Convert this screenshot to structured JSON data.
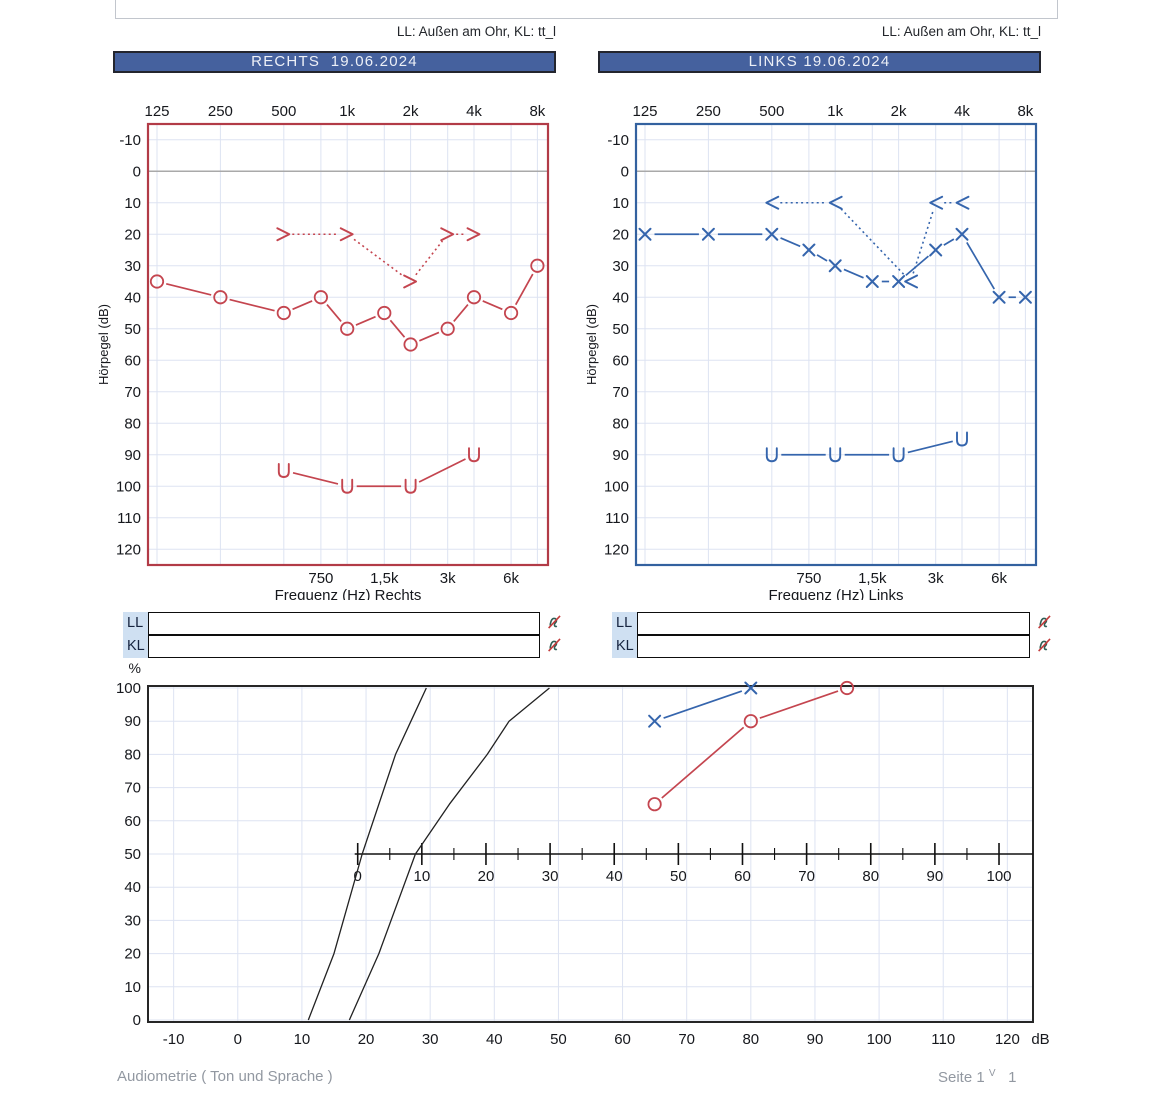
{
  "notes": {
    "left": "LL: Außen am Ohr, KL: tt_l",
    "right": "LL: Außen am Ohr, KL: tt_l"
  },
  "colors": {
    "red": "#c4454f",
    "red_border": "#b23b47",
    "blue": "#3565ad",
    "blue_border": "#33619f",
    "header_bg": "#45619e",
    "header_border": "#23252e",
    "header_text": "#edf0f7",
    "grid": "#dde3f2",
    "zero_line": "#a9a9a9",
    "axis_text": "#16181d",
    "label_bg": "#cfe0f2",
    "label_text": "#16243f",
    "speech_border": "#262626",
    "curve": "#222222",
    "footer_text": "#9298a1",
    "topbox_border": "#c2c6cd",
    "icon_glyph": "#2f5f55",
    "icon_slash": "#c23b3b"
  },
  "io_panel": {
    "rows": [
      "LL",
      "KL"
    ]
  },
  "footer": {
    "left": "Audiometrie ( Ton und Sprache )",
    "page": "Seite 1",
    "sup": "V",
    "num": "1"
  },
  "chart_data": [
    {
      "type": "line",
      "id": "audiogram-rechts",
      "title": "RECHTS  19.06.2024",
      "xlabel": "Frequenz (Hz) Rechts",
      "ylabel": "Hörpegel (dB)",
      "color_key": "red",
      "ylim": [
        -10,
        120
      ],
      "y_step": 10,
      "y_inverted": true,
      "top_ticks": [
        {
          "f": 125,
          "label": "125"
        },
        {
          "f": 250,
          "label": "250"
        },
        {
          "f": 500,
          "label": "500"
        },
        {
          "f": 1000,
          "label": "1k"
        },
        {
          "f": 2000,
          "label": "2k"
        },
        {
          "f": 4000,
          "label": "4k"
        },
        {
          "f": 8000,
          "label": "8k"
        }
      ],
      "bottom_ticks": [
        {
          "f": 750,
          "label": "750"
        },
        {
          "f": 1500,
          "label": "1,5k"
        },
        {
          "f": 3000,
          "label": "3k"
        },
        {
          "f": 6000,
          "label": "6k"
        }
      ],
      "grid_freqs": [
        125,
        250,
        500,
        750,
        1000,
        1500,
        2000,
        3000,
        4000,
        6000,
        8000
      ],
      "series": [
        {
          "name": "luftleitung",
          "symbol": "O",
          "line": "solid",
          "points": [
            [
              125,
              35
            ],
            [
              250,
              40
            ],
            [
              500,
              45
            ],
            [
              750,
              40
            ],
            [
              1000,
              50
            ],
            [
              1500,
              45
            ],
            [
              2000,
              55
            ],
            [
              3000,
              50
            ],
            [
              4000,
              40
            ],
            [
              6000,
              45
            ],
            [
              8000,
              30
            ]
          ]
        },
        {
          "name": "knochenleitung",
          "symbol": ">",
          "line": "dotted",
          "points": [
            [
              500,
              20
            ],
            [
              1000,
              20
            ],
            [
              2000,
              35
            ],
            [
              3000,
              20
            ],
            [
              4000,
              20
            ]
          ]
        },
        {
          "name": "unbehaglichkeit",
          "symbol": "U",
          "line": "solid",
          "points": [
            [
              500,
              95
            ],
            [
              1000,
              100
            ],
            [
              2000,
              100
            ],
            [
              4000,
              90
            ]
          ]
        }
      ]
    },
    {
      "type": "line",
      "id": "audiogram-links",
      "title": "LINKS 19.06.2024",
      "xlabel": "Frequenz (Hz) Links",
      "ylabel": "Hörpegel (dB)",
      "color_key": "blue",
      "ylim": [
        -10,
        120
      ],
      "y_step": 10,
      "y_inverted": true,
      "top_ticks": [
        {
          "f": 125,
          "label": "125"
        },
        {
          "f": 250,
          "label": "250"
        },
        {
          "f": 500,
          "label": "500"
        },
        {
          "f": 1000,
          "label": "1k"
        },
        {
          "f": 2000,
          "label": "2k"
        },
        {
          "f": 4000,
          "label": "4k"
        },
        {
          "f": 8000,
          "label": "8k"
        }
      ],
      "bottom_ticks": [
        {
          "f": 750,
          "label": "750"
        },
        {
          "f": 1500,
          "label": "1,5k"
        },
        {
          "f": 3000,
          "label": "3k"
        },
        {
          "f": 6000,
          "label": "6k"
        }
      ],
      "grid_freqs": [
        125,
        250,
        500,
        750,
        1000,
        1500,
        2000,
        3000,
        4000,
        6000,
        8000
      ],
      "series": [
        {
          "name": "luftleitung",
          "symbol": "X",
          "line": "solid",
          "points": [
            [
              125,
              20
            ],
            [
              250,
              20
            ],
            [
              500,
              20
            ],
            [
              750,
              25
            ],
            [
              1000,
              30
            ],
            [
              1500,
              35
            ],
            [
              2000,
              35
            ],
            [
              3000,
              25
            ],
            [
              4000,
              20
            ],
            [
              6000,
              40
            ],
            [
              8000,
              40
            ]
          ]
        },
        {
          "name": "knochenleitung",
          "symbol": "<",
          "line": "dotted",
          "points": [
            [
              500,
              10
            ],
            [
              1000,
              10
            ],
            [
              2000,
              35,
              12
            ],
            [
              3000,
              10
            ],
            [
              4000,
              10
            ]
          ]
        },
        {
          "name": "unbehaglichkeit",
          "symbol": "U",
          "line": "solid",
          "points": [
            [
              500,
              90
            ],
            [
              1000,
              90
            ],
            [
              2000,
              90
            ],
            [
              4000,
              85
            ]
          ]
        }
      ]
    },
    {
      "type": "line",
      "id": "sprachaudiogramm",
      "title": "",
      "ylabel": "%",
      "xlabel": "dB",
      "xlim": [
        -10,
        120
      ],
      "x_step": 10,
      "ylim": [
        0,
        100
      ],
      "y_step": 10,
      "inner_axis": {
        "zero_at_db": 18.7,
        "min": 0,
        "max": 100,
        "major_step": 10,
        "minor_step": 5
      },
      "reference_curves": [
        {
          "name": "normkurve-zahlen",
          "points": [
            [
              11,
              0
            ],
            [
              15,
              20
            ],
            [
              19.4,
              50
            ],
            [
              24.6,
              80
            ],
            [
              27,
              90
            ],
            [
              29.4,
              100
            ]
          ]
        },
        {
          "name": "normkurve-einsilber",
          "points": [
            [
              17.4,
              0
            ],
            [
              22,
              20
            ],
            [
              27.7,
              50
            ],
            [
              33,
              65
            ],
            [
              38.9,
              80
            ],
            [
              42.3,
              90
            ],
            [
              48.6,
              100
            ]
          ]
        }
      ],
      "series": [
        {
          "name": "sprache-links",
          "symbol": "X",
          "color_key": "blue",
          "points": [
            [
              65,
              90
            ],
            [
              80,
              100
            ]
          ]
        },
        {
          "name": "sprache-rechts",
          "symbol": "O",
          "color_key": "red",
          "points": [
            [
              65,
              65
            ],
            [
              80,
              90
            ],
            [
              95,
              100
            ]
          ]
        }
      ]
    }
  ]
}
